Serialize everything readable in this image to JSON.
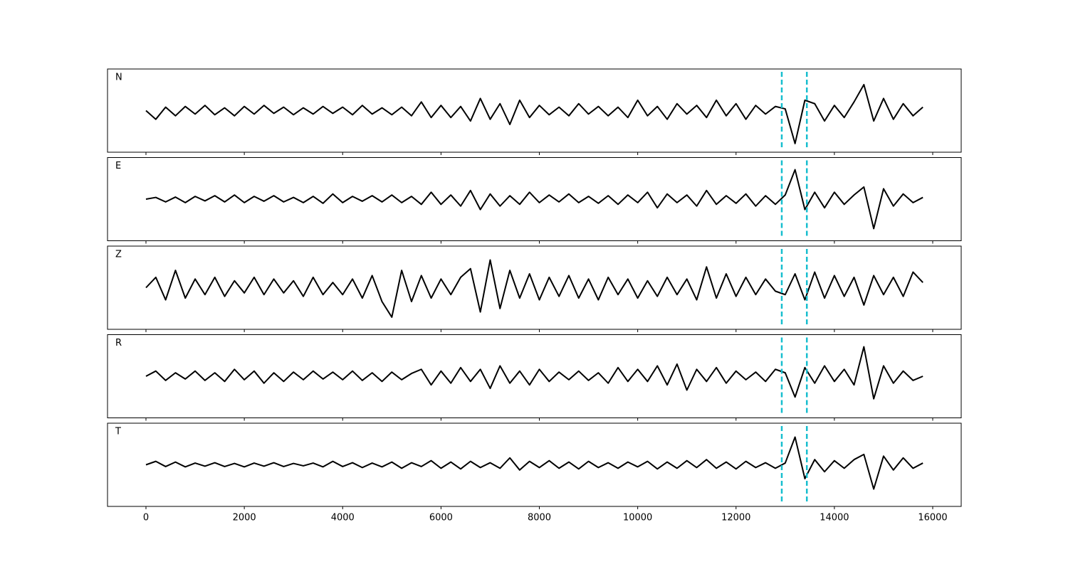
{
  "chart_data": {
    "type": "line",
    "x": [
      0,
      200,
      400,
      600,
      800,
      1000,
      1200,
      1400,
      1600,
      1800,
      2000,
      2200,
      2400,
      2600,
      2800,
      3000,
      3200,
      3400,
      3600,
      3800,
      4000,
      4200,
      4400,
      4600,
      4800,
      5000,
      5200,
      5400,
      5600,
      5800,
      6000,
      6200,
      6400,
      6600,
      6800,
      7000,
      7200,
      7400,
      7600,
      7800,
      8000,
      8200,
      8400,
      8600,
      8800,
      9000,
      9200,
      9400,
      9600,
      9800,
      10000,
      10200,
      10400,
      10600,
      10800,
      11000,
      11200,
      11400,
      11600,
      11800,
      12000,
      12200,
      12400,
      12600,
      12800,
      13000,
      13200,
      13400,
      13600,
      13800,
      14000,
      14200,
      14400,
      14600,
      14800,
      15000,
      15200,
      15400,
      15600,
      15800
    ],
    "xlim": [
      -782,
      16579
    ],
    "xticks": [
      0,
      2000,
      4000,
      6000,
      8000,
      10000,
      12000,
      14000,
      16000
    ],
    "ylim": [
      -1.2,
      1.2
    ],
    "vlines": [
      12930,
      13440
    ],
    "vline_color": "#17becf",
    "series": [
      {
        "name": "N",
        "color": "#000000",
        "values": [
          0.0,
          -0.25,
          0.1,
          -0.15,
          0.12,
          -0.1,
          0.15,
          -0.12,
          0.08,
          -0.15,
          0.12,
          -0.1,
          0.15,
          -0.08,
          0.1,
          -0.12,
          0.08,
          -0.1,
          0.12,
          -0.08,
          0.1,
          -0.12,
          0.15,
          -0.1,
          0.08,
          -0.12,
          0.1,
          -0.15,
          0.25,
          -0.2,
          0.15,
          -0.2,
          0.12,
          -0.3,
          0.35,
          -0.25,
          0.2,
          -0.4,
          0.3,
          -0.2,
          0.15,
          -0.12,
          0.1,
          -0.15,
          0.2,
          -0.1,
          0.12,
          -0.15,
          0.1,
          -0.2,
          0.3,
          -0.15,
          0.12,
          -0.25,
          0.2,
          -0.1,
          0.15,
          -0.2,
          0.3,
          -0.15,
          0.2,
          -0.25,
          0.15,
          -0.1,
          0.12,
          0.05,
          -0.95,
          0.3,
          0.2,
          -0.3,
          0.15,
          -0.2,
          0.25,
          0.75,
          -0.3,
          0.35,
          -0.25,
          0.2,
          -0.15,
          0.1
        ]
      },
      {
        "name": "E",
        "color": "#000000",
        "values": [
          0.0,
          0.05,
          -0.08,
          0.06,
          -0.1,
          0.08,
          -0.05,
          0.1,
          -0.08,
          0.12,
          -0.1,
          0.08,
          -0.06,
          0.1,
          -0.08,
          0.05,
          -0.1,
          0.08,
          -0.12,
          0.15,
          -0.1,
          0.08,
          -0.06,
          0.1,
          -0.08,
          0.12,
          -0.1,
          0.08,
          -0.15,
          0.2,
          -0.15,
          0.12,
          -0.2,
          0.25,
          -0.3,
          0.15,
          -0.2,
          0.1,
          -0.15,
          0.2,
          -0.1,
          0.12,
          -0.08,
          0.15,
          -0.1,
          0.08,
          -0.12,
          0.1,
          -0.15,
          0.12,
          -0.1,
          0.2,
          -0.25,
          0.15,
          -0.1,
          0.12,
          -0.2,
          0.25,
          -0.15,
          0.1,
          -0.12,
          0.15,
          -0.2,
          0.1,
          -0.15,
          0.12,
          0.85,
          -0.3,
          0.2,
          -0.25,
          0.2,
          -0.15,
          0.12,
          0.35,
          -0.85,
          0.3,
          -0.2,
          0.15,
          -0.1,
          0.05
        ]
      },
      {
        "name": "Z",
        "color": "#000000",
        "values": [
          0.0,
          0.3,
          -0.35,
          0.5,
          -0.3,
          0.25,
          -0.2,
          0.3,
          -0.25,
          0.2,
          -0.15,
          0.3,
          -0.2,
          0.25,
          -0.15,
          0.2,
          -0.25,
          0.3,
          -0.2,
          0.15,
          -0.2,
          0.25,
          -0.3,
          0.35,
          -0.4,
          -0.85,
          0.5,
          -0.4,
          0.35,
          -0.3,
          0.25,
          -0.2,
          0.3,
          0.55,
          -0.7,
          0.8,
          -0.6,
          0.5,
          -0.3,
          0.4,
          -0.35,
          0.3,
          -0.25,
          0.35,
          -0.3,
          0.25,
          -0.35,
          0.3,
          -0.2,
          0.25,
          -0.3,
          0.2,
          -0.25,
          0.3,
          -0.2,
          0.25,
          -0.35,
          0.6,
          -0.3,
          0.4,
          -0.25,
          0.3,
          -0.2,
          0.25,
          -0.1,
          -0.2,
          0.4,
          -0.35,
          0.45,
          -0.3,
          0.35,
          -0.25,
          0.3,
          -0.5,
          0.35,
          -0.2,
          0.3,
          -0.25,
          0.45,
          0.15
        ]
      },
      {
        "name": "R",
        "color": "#000000",
        "values": [
          0.0,
          0.15,
          -0.12,
          0.1,
          -0.08,
          0.15,
          -0.12,
          0.1,
          -0.15,
          0.2,
          -0.1,
          0.15,
          -0.2,
          0.1,
          -0.15,
          0.12,
          -0.1,
          0.15,
          -0.08,
          0.12,
          -0.1,
          0.15,
          -0.12,
          0.1,
          -0.15,
          0.12,
          -0.1,
          0.08,
          0.2,
          -0.25,
          0.15,
          -0.2,
          0.25,
          -0.15,
          0.2,
          -0.35,
          0.3,
          -0.2,
          0.15,
          -0.25,
          0.2,
          -0.15,
          0.12,
          -0.1,
          0.15,
          -0.12,
          0.1,
          -0.2,
          0.25,
          -0.15,
          0.2,
          -0.15,
          0.3,
          -0.25,
          0.35,
          -0.4,
          0.2,
          -0.15,
          0.25,
          -0.2,
          0.15,
          -0.1,
          0.12,
          -0.15,
          0.2,
          0.1,
          -0.6,
          0.25,
          -0.2,
          0.3,
          -0.15,
          0.2,
          -0.25,
          0.85,
          -0.65,
          0.3,
          -0.2,
          0.15,
          -0.12,
          0.0
        ]
      },
      {
        "name": "T",
        "color": "#000000",
        "values": [
          0.0,
          0.1,
          -0.05,
          0.08,
          -0.06,
          0.05,
          -0.04,
          0.06,
          -0.05,
          0.04,
          -0.06,
          0.05,
          -0.04,
          0.06,
          -0.05,
          0.04,
          -0.03,
          0.05,
          -0.06,
          0.1,
          -0.05,
          0.06,
          -0.08,
          0.05,
          -0.06,
          0.08,
          -0.1,
          0.06,
          -0.05,
          0.12,
          -0.1,
          0.08,
          -0.12,
          0.1,
          -0.08,
          0.06,
          -0.1,
          0.2,
          -0.15,
          0.1,
          -0.08,
          0.12,
          -0.1,
          0.08,
          -0.12,
          0.1,
          -0.08,
          0.06,
          -0.1,
          0.08,
          -0.06,
          0.1,
          -0.12,
          0.08,
          -0.1,
          0.12,
          -0.08,
          0.15,
          -0.1,
          0.08,
          -0.12,
          0.1,
          -0.08,
          0.06,
          -0.1,
          0.05,
          0.8,
          -0.4,
          0.15,
          -0.2,
          0.12,
          -0.1,
          0.15,
          0.3,
          -0.7,
          0.25,
          -0.15,
          0.2,
          -0.1,
          0.05
        ]
      }
    ]
  }
}
